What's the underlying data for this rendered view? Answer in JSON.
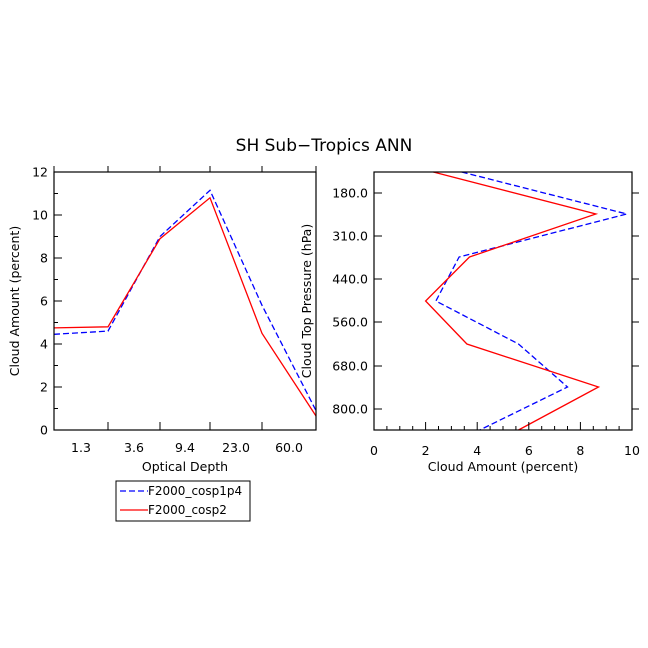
{
  "figure_title": "SH Sub−Tropics ANN",
  "legend": {
    "placement": "below-left",
    "entries": [
      {
        "label": "F2000_cosp1p4",
        "color": "#0000ff",
        "dash": "dashed"
      },
      {
        "label": "F2000_cosp2",
        "color": "#ff0000",
        "dash": "solid"
      }
    ]
  },
  "chart_data": [
    {
      "type": "line",
      "xlabel": "Optical Depth",
      "ylabel": "Cloud Amount (percent)",
      "x_tick_labels": [
        "1.3",
        "3.6",
        "9.4",
        "23.0",
        "60.0"
      ],
      "y_ticks": [
        0,
        2,
        4,
        6,
        8,
        10,
        12
      ],
      "ylim": [
        0,
        12
      ],
      "x_bins": [
        0,
        1,
        2,
        3,
        4,
        5,
        6
      ],
      "xlim": [
        0,
        6
      ],
      "grid": false,
      "series": [
        {
          "name": "F2000_cosp1p4",
          "color": "#0000ff",
          "dash": "dashed",
          "values": [
            4.45,
            4.6,
            9.0,
            11.15,
            5.8,
            0.9
          ]
        },
        {
          "name": "F2000_cosp2",
          "color": "#ff0000",
          "dash": "solid",
          "values": [
            4.75,
            4.8,
            8.9,
            10.8,
            4.5,
            0.65
          ]
        }
      ]
    },
    {
      "type": "line",
      "xlabel": "Cloud Amount (percent)",
      "ylabel": "Cloud Top Pressure (hPa)",
      "x_ticks": [
        0,
        2,
        4,
        6,
        8,
        10
      ],
      "xlim": [
        0,
        10
      ],
      "y_tick_labels": [
        "180.0",
        "310.0",
        "440.0",
        "560.0",
        "680.0",
        "800.0"
      ],
      "y_levels": [
        0,
        1,
        2,
        3,
        4,
        5,
        6
      ],
      "grid": false,
      "series": [
        {
          "name": "F2000_cosp1p4",
          "color": "#0000ff",
          "dash": "dashed",
          "values": [
            3.4,
            9.8,
            3.3,
            2.4,
            5.6,
            7.5,
            4.1
          ]
        },
        {
          "name": "F2000_cosp2",
          "color": "#ff0000",
          "dash": "solid",
          "values": [
            2.3,
            8.6,
            3.7,
            2.0,
            3.6,
            8.7,
            5.6
          ]
        }
      ]
    }
  ]
}
